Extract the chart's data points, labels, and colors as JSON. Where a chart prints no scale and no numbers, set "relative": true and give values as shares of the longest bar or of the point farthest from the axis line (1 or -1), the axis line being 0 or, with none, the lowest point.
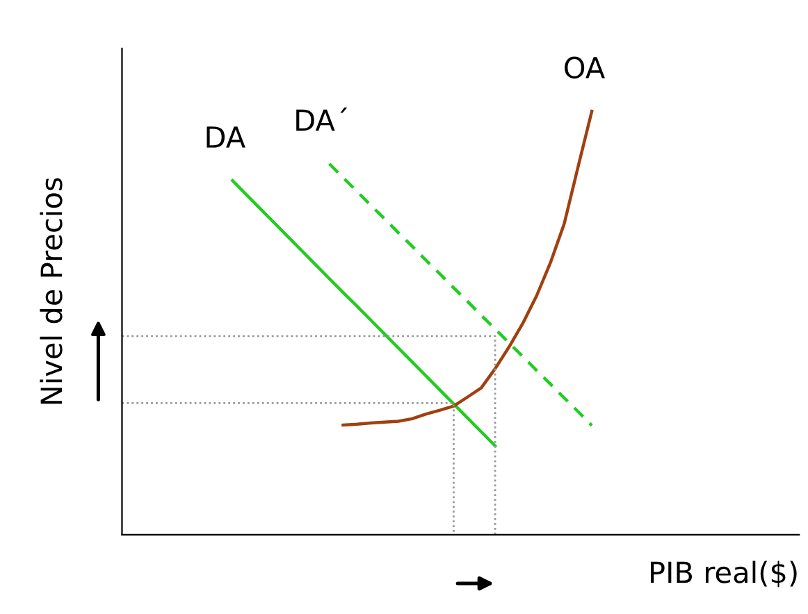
{
  "chart_data": {
    "type": "line",
    "relative": true,
    "xlabel": "PIB real($)",
    "ylabel": "Nivel de Precios",
    "categories": [
      null,
      null,
      null,
      null,
      null,
      null,
      null,
      null,
      null,
      null,
      null,
      null,
      null,
      null,
      null,
      null,
      null,
      null,
      null,
      null,
      null,
      null,
      null,
      null,
      null,
      null,
      null,
      null,
      null,
      null,
      null,
      null,
      null,
      null,
      null,
      null,
      null,
      null,
      null,
      null,
      null,
      null,
      null,
      null,
      null,
      null,
      null,
      null,
      null,
      null
    ],
    "series": [
      {
        "name": "DA",
        "color": "#22cc22",
        "line_style": "solid",
        "values": [
          null,
          null,
          null,
          null,
          null,
          null,
          null,
          null,
          0.836,
          0.803,
          0.77,
          0.737,
          0.704,
          0.671,
          0.638,
          0.605,
          0.572,
          0.54,
          0.507,
          0.474,
          0.441,
          0.408,
          0.375,
          0.342,
          0.309,
          0.276,
          0.243,
          0.21,
          null,
          null,
          null,
          null,
          null,
          null,
          null,
          null,
          null,
          null,
          null,
          null,
          null,
          null,
          null,
          null,
          null,
          null,
          null,
          null,
          null,
          null
        ]
      },
      {
        "name": "DA´",
        "color": "#22cc22",
        "line_style": "dashed",
        "values": [
          null,
          null,
          null,
          null,
          null,
          null,
          null,
          null,
          null,
          null,
          null,
          null,
          null,
          null,
          null,
          0.876,
          0.843,
          0.811,
          0.778,
          0.746,
          0.713,
          0.681,
          0.648,
          0.616,
          0.583,
          0.551,
          0.518,
          0.486,
          0.453,
          0.421,
          0.388,
          0.356,
          0.323,
          0.291,
          0.258,
          null,
          null,
          null,
          null,
          null,
          null,
          null,
          null,
          null,
          null,
          null,
          null,
          null,
          null,
          null
        ]
      },
      {
        "name": "OA",
        "color": "#a0400f",
        "line_style": "solid",
        "values": [
          null,
          null,
          null,
          null,
          null,
          null,
          null,
          null,
          null,
          null,
          null,
          null,
          null,
          null,
          null,
          null,
          0.259,
          0.261,
          0.264,
          0.266,
          0.268,
          0.274,
          0.285,
          0.294,
          0.304,
          0.325,
          0.347,
          0.392,
          0.443,
          0.499,
          0.564,
          0.642,
          0.734,
          0.868,
          1.0,
          null,
          null,
          null,
          null,
          null,
          null,
          null,
          null,
          null,
          null,
          null,
          null,
          null,
          null,
          null
        ]
      },
      {
        "type": "step",
        "color": "#999999",
        "line_style": "dotted",
        "values": [
          0.469,
          0.469,
          0.469,
          0.469,
          0.469,
          0.469,
          0.469,
          0.469,
          0.469,
          0.469,
          0.469,
          0.469,
          0.469,
          0.469,
          0.469,
          0.469,
          0.469,
          0.469,
          0.469,
          0.469,
          0.469,
          0.469,
          0.469,
          0.469,
          0.469,
          0.469,
          0.469,
          0,
          null,
          null,
          null,
          null,
          null,
          null,
          null,
          null,
          null,
          null,
          null,
          null,
          null,
          null,
          null,
          null,
          null,
          null,
          null,
          null,
          null,
          null
        ]
      },
      {
        "type": "step",
        "color": "#999999",
        "line_style": "dotted",
        "values": [
          0.311,
          0.311,
          0.311,
          0.311,
          0.311,
          0.311,
          0.311,
          0.311,
          0.311,
          0.311,
          0.311,
          0.311,
          0.311,
          0.311,
          0.311,
          0.311,
          0.311,
          0.311,
          0.311,
          0.311,
          0.311,
          0.311,
          0.311,
          0.311,
          0,
          null,
          null,
          null,
          null,
          null,
          null,
          null,
          null,
          null,
          null,
          null,
          null,
          null,
          null,
          null,
          null,
          null,
          null,
          null,
          null,
          null,
          null,
          null,
          null,
          null
        ]
      }
    ]
  }
}
